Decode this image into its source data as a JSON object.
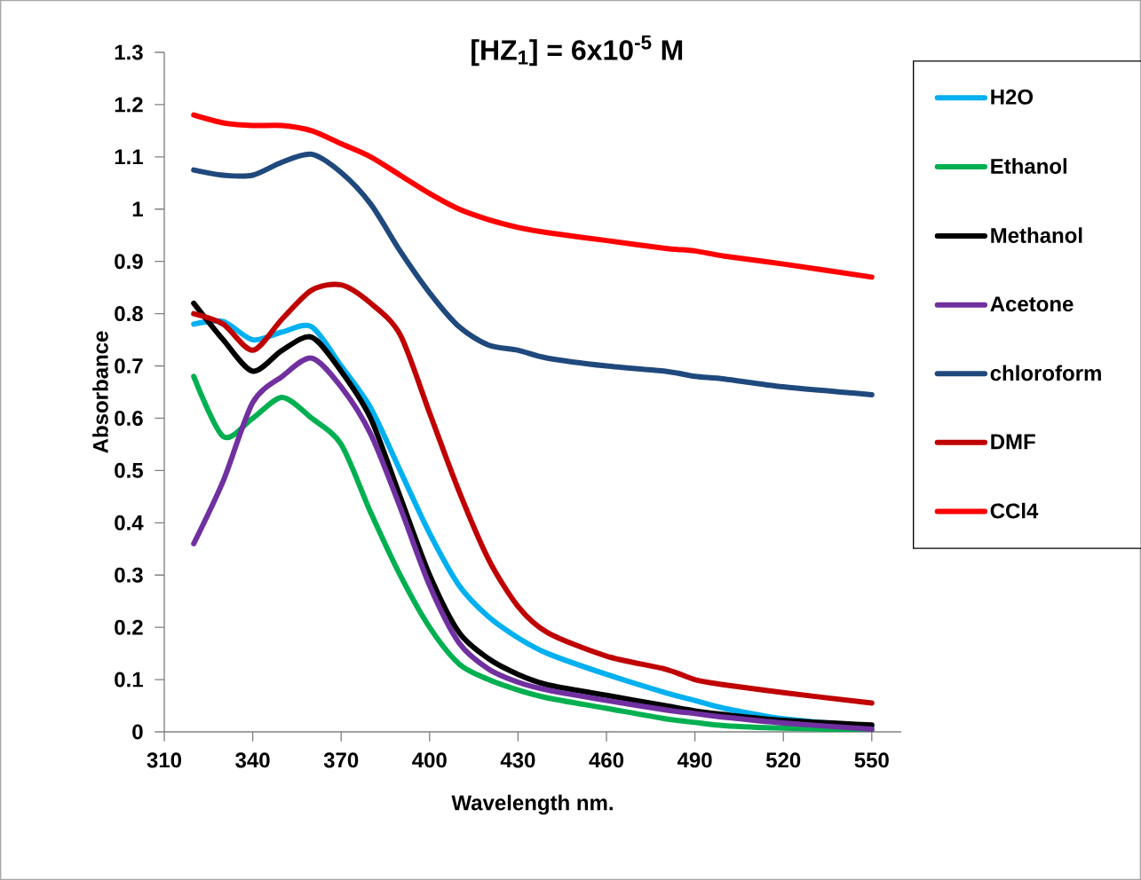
{
  "chart_data": {
    "type": "line",
    "title": "[HZ$_{1}$] = 6x10$^{-5}$ M",
    "xlabel": "Wavelength nm.",
    "ylabel": "Absorbance",
    "x": [
      320,
      330,
      340,
      350,
      360,
      370,
      380,
      390,
      400,
      410,
      420,
      430,
      440,
      460,
      480,
      490,
      500,
      520,
      550
    ],
    "series": [
      {
        "name": "H2O",
        "color": "#00b0f0",
        "values": [
          0.78,
          0.785,
          0.75,
          0.765,
          0.775,
          0.7,
          0.62,
          0.5,
          0.38,
          0.28,
          0.22,
          0.18,
          0.15,
          0.11,
          0.075,
          0.06,
          0.045,
          0.025,
          0.01
        ]
      },
      {
        "name": "Ethanol",
        "color": "#00b050",
        "values": [
          0.68,
          0.565,
          0.6,
          0.64,
          0.6,
          0.55,
          0.42,
          0.3,
          0.2,
          0.13,
          0.1,
          0.08,
          0.065,
          0.045,
          0.025,
          0.018,
          0.012,
          0.007,
          0.003
        ]
      },
      {
        "name": "Methanol",
        "color": "#000000",
        "values": [
          0.82,
          0.75,
          0.69,
          0.73,
          0.755,
          0.69,
          0.6,
          0.45,
          0.3,
          0.19,
          0.14,
          0.11,
          0.09,
          0.07,
          0.05,
          0.04,
          0.033,
          0.022,
          0.013
        ]
      },
      {
        "name": "Acetone",
        "color": "#7030a0",
        "values": [
          0.36,
          0.48,
          0.63,
          0.68,
          0.715,
          0.66,
          0.57,
          0.43,
          0.28,
          0.17,
          0.12,
          0.095,
          0.08,
          0.06,
          0.042,
          0.035,
          0.028,
          0.017,
          0.005
        ]
      },
      {
        "name": "chloroform",
        "color": "#1f497d",
        "values": [
          1.075,
          1.065,
          1.065,
          1.09,
          1.105,
          1.07,
          1.01,
          0.92,
          0.84,
          0.775,
          0.74,
          0.73,
          0.715,
          0.7,
          0.69,
          0.68,
          0.675,
          0.66,
          0.645
        ]
      },
      {
        "name": "DMF",
        "color": "#c00000",
        "values": [
          0.8,
          0.78,
          0.73,
          0.79,
          0.845,
          0.855,
          0.82,
          0.76,
          0.61,
          0.46,
          0.33,
          0.24,
          0.19,
          0.145,
          0.12,
          0.1,
          0.09,
          0.075,
          0.055
        ]
      },
      {
        "name": "CCl4",
        "color": "#ff0000",
        "values": [
          1.18,
          1.165,
          1.16,
          1.16,
          1.15,
          1.125,
          1.1,
          1.065,
          1.03,
          1.0,
          0.98,
          0.965,
          0.955,
          0.94,
          0.925,
          0.92,
          0.91,
          0.895,
          0.87
        ]
      }
    ],
    "xlim": [
      310,
      560
    ],
    "ylim": [
      0,
      1.3
    ],
    "xticks": [
      310,
      340,
      370,
      400,
      430,
      460,
      490,
      520,
      550
    ],
    "yticks": [
      0,
      0.1,
      0.2,
      0.3,
      0.4,
      0.5,
      0.6,
      0.7,
      0.8,
      0.9,
      1,
      1.1,
      1.2,
      1.3
    ],
    "legend": "right",
    "marker": "none",
    "line_style": "solid"
  }
}
